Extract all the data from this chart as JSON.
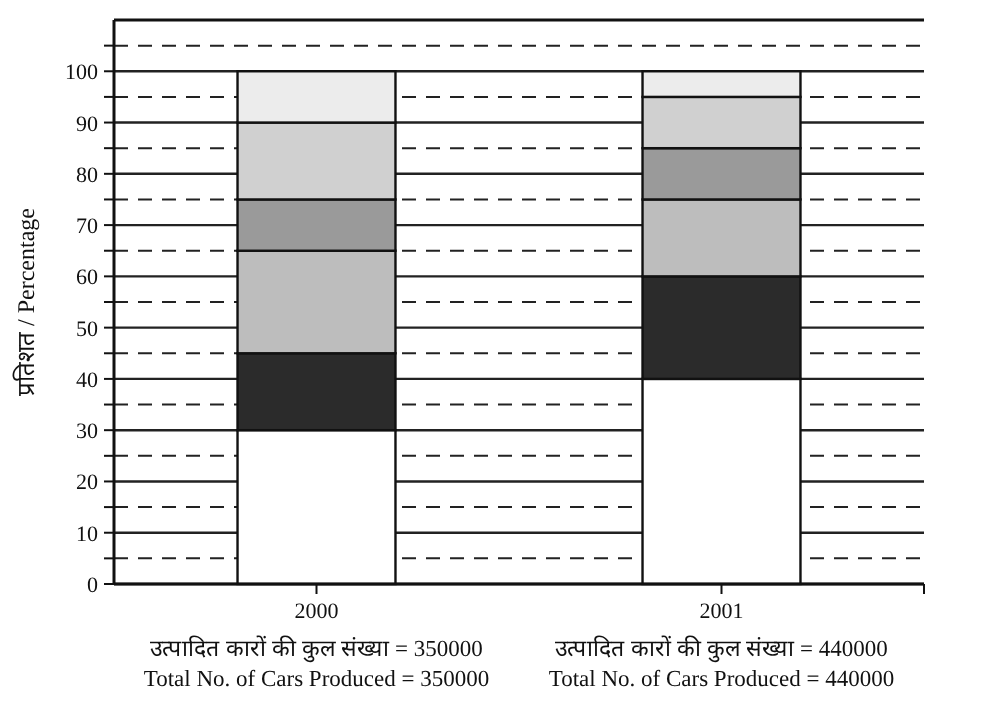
{
  "chart_data": {
    "type": "bar",
    "stacked": true,
    "ylabel": "प्रतिशत / Percentage",
    "categories": [
      "2000",
      "2001"
    ],
    "series": [
      {
        "color": "#ffffff",
        "values": [
          30,
          40
        ]
      },
      {
        "color": "#2b2b2b",
        "values": [
          15,
          20
        ]
      },
      {
        "color": "#bdbdbd",
        "values": [
          20,
          15
        ]
      },
      {
        "color": "#9a9a9a",
        "values": [
          10,
          10
        ]
      },
      {
        "color": "#d0d0d0",
        "values": [
          15,
          10
        ]
      },
      {
        "color": "#ececec",
        "values": [
          10,
          5
        ]
      }
    ],
    "ylim": [
      0,
      110
    ],
    "yticks": [
      0,
      {
        "value": 5,
        "label": null
      },
      10,
      {
        "value": 15,
        "label": null
      },
      20,
      {
        "value": 25,
        "label": null
      },
      30,
      {
        "value": 35,
        "label": null
      },
      40,
      {
        "value": 45,
        "label": null
      },
      50,
      {
        "value": 55,
        "label": null
      },
      60,
      {
        "value": 65,
        "label": null
      },
      70,
      {
        "value": 75,
        "label": null
      },
      80,
      {
        "value": 85,
        "label": null
      },
      90,
      {
        "value": 95,
        "label": null
      },
      100,
      {
        "value": 105,
        "label": null
      }
    ],
    "grid": true,
    "annotations": [
      "उत्पादित कारों की कुल संख्या = 350000",
      "Total No. of Cars Produced = 350000",
      "उत्पादित कारों की कुल संख्या = 440000",
      "Total No. of Cars Produced = 440000"
    ]
  }
}
